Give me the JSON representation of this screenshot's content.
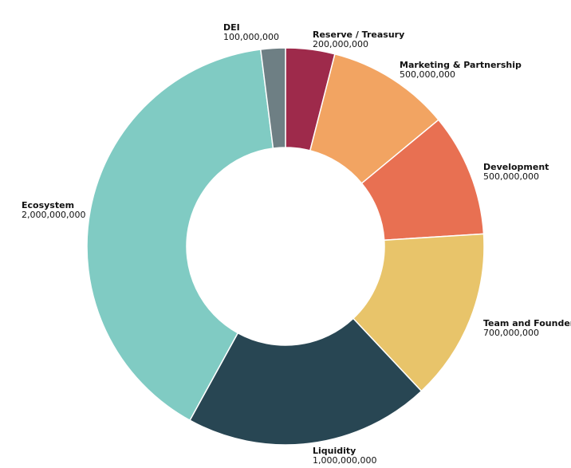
{
  "chart_data": {
    "type": "pie",
    "title": "",
    "slices": [
      {
        "label": "Reserve / Treasury",
        "value": 200000000,
        "value_text": "200,000,000",
        "color": "#9e2a4b"
      },
      {
        "label": "Marketing & Partnership",
        "value": 500000000,
        "value_text": "500,000,000",
        "color": "#f2a462"
      },
      {
        "label": "Development",
        "value": 500000000,
        "value_text": "500,000,000",
        "color": "#e87052"
      },
      {
        "label": "Team and Founder",
        "value": 700000000,
        "value_text": "700,000,000",
        "color": "#e8c46a"
      },
      {
        "label": "Liquidity",
        "value": 1000000000,
        "value_text": "1,000,000,000",
        "color": "#284653"
      },
      {
        "label": "Ecosystem",
        "value": 2000000000,
        "value_text": "2,000,000,000",
        "color": "#80cbc3"
      },
      {
        "label": "DEI",
        "value": 100000000,
        "value_text": "100,000,000",
        "color": "#6e7f84"
      }
    ]
  }
}
